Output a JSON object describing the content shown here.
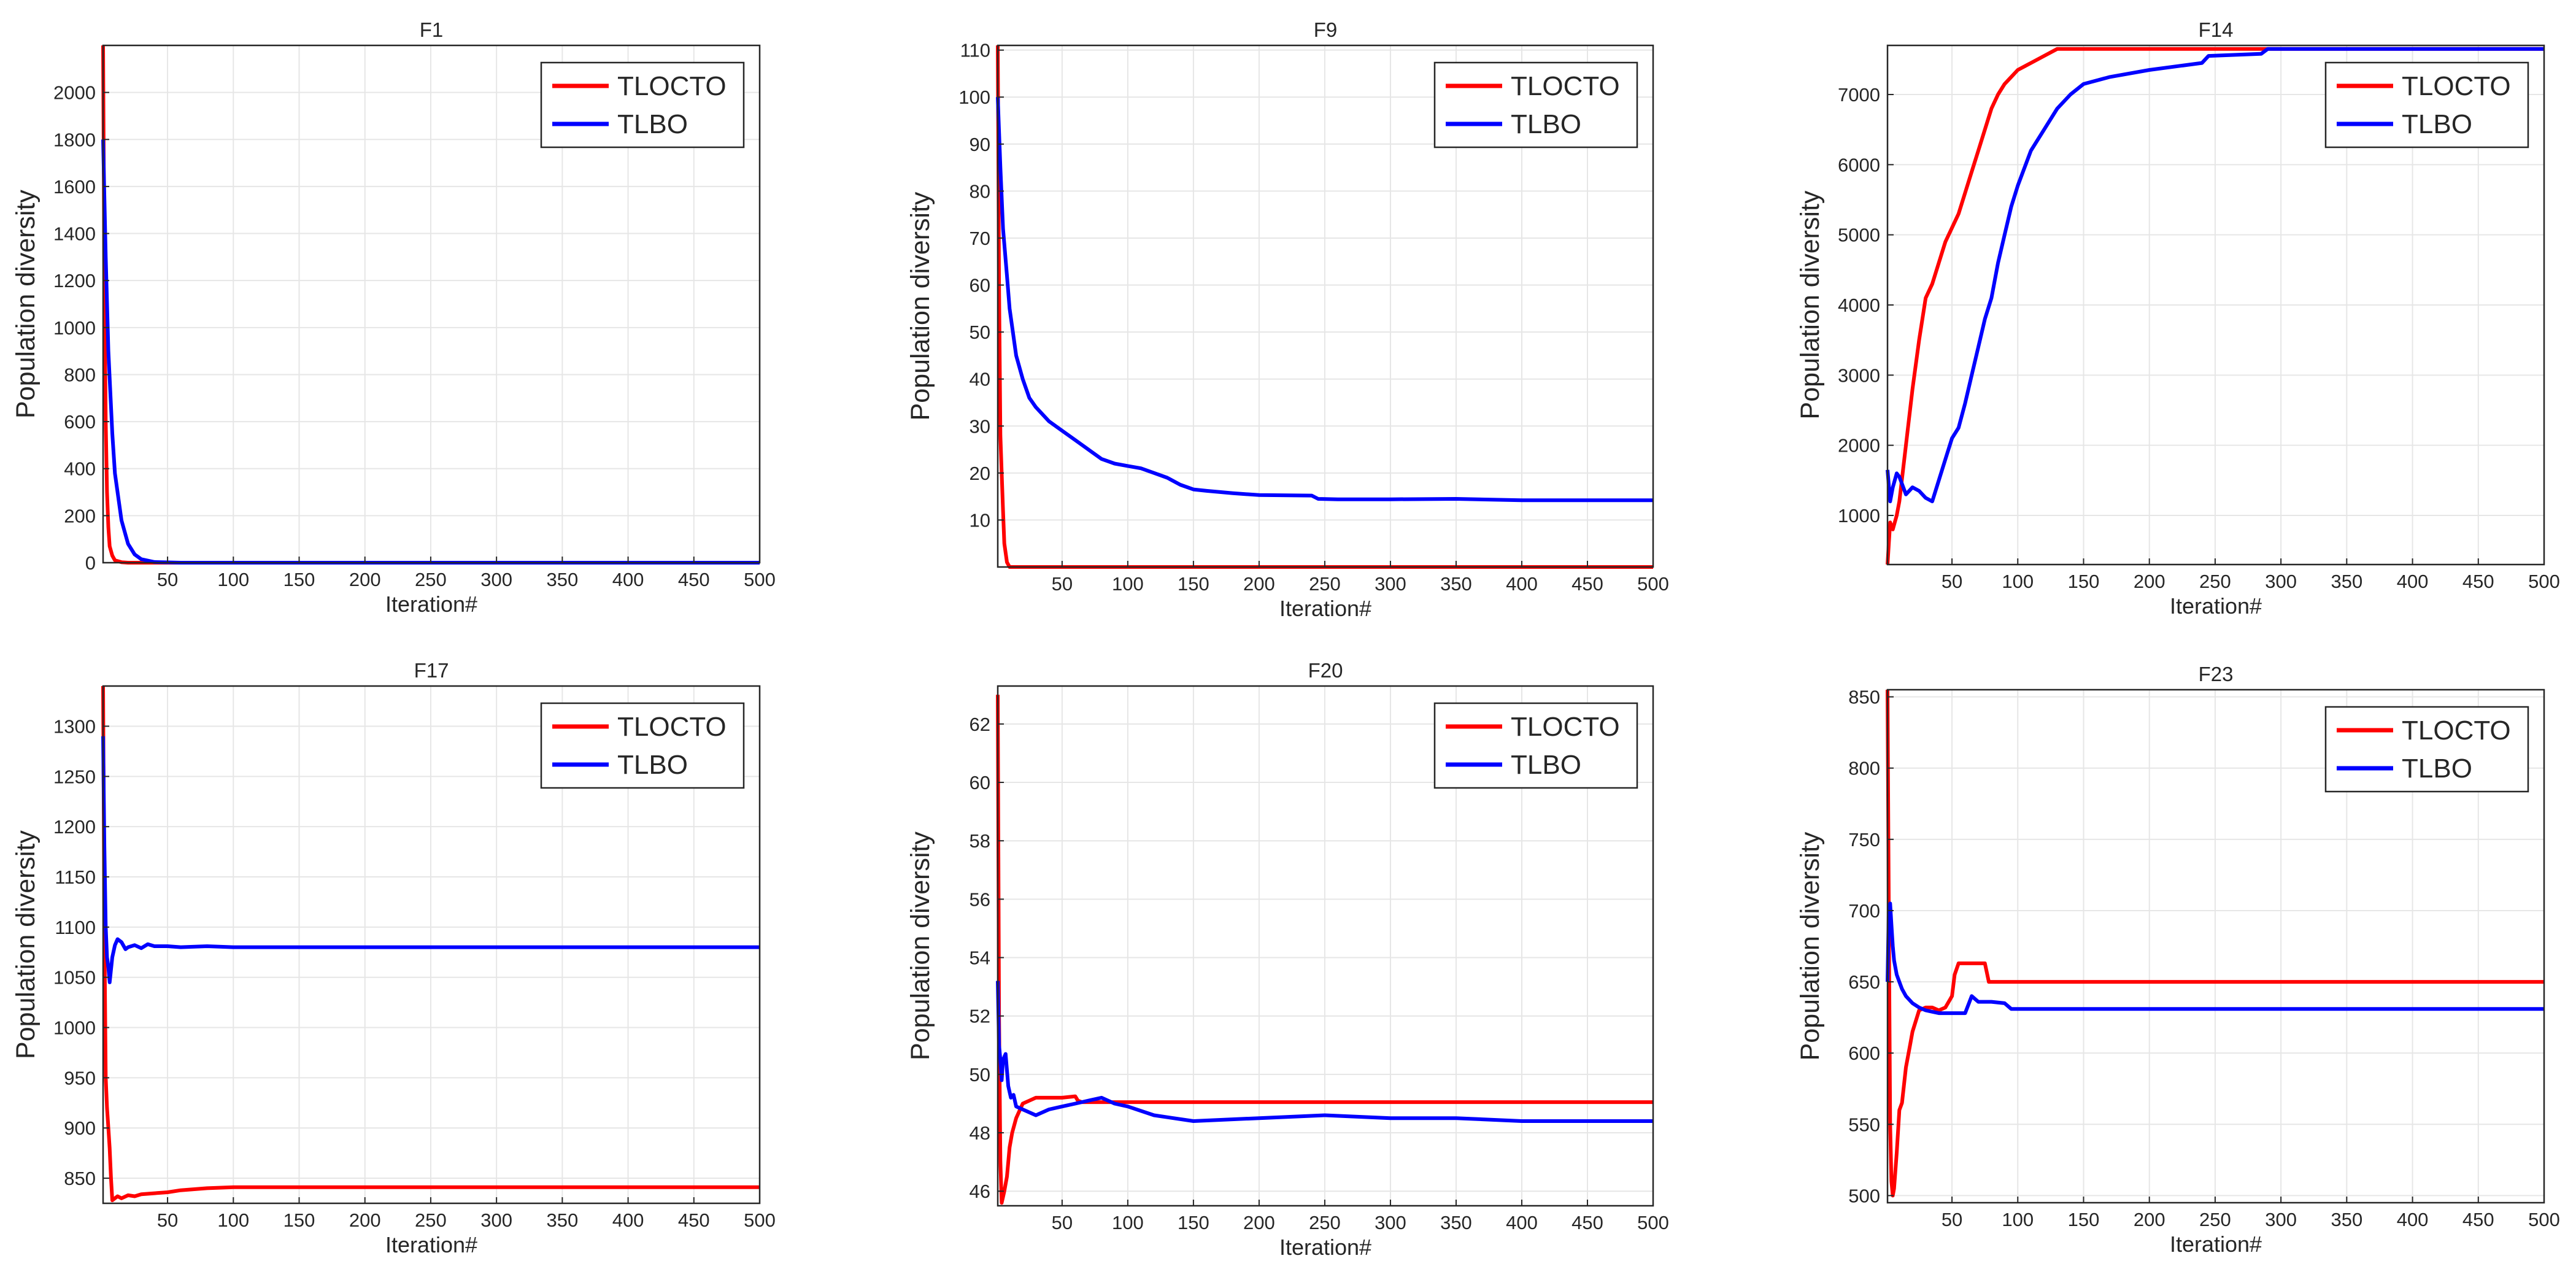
{
  "figure": {
    "series_names": [
      "TLOCTO",
      "TLBO"
    ]
  },
  "colors": {
    "TLOCTO": "#ff0000",
    "TLBO": "#0000ff",
    "grid": "#e6e6e6",
    "axis": "#262626"
  },
  "chart_data": [
    {
      "type": "line",
      "title": "F1",
      "xlabel": "Iteration#",
      "ylabel": "Population diversity",
      "xlim": [
        1,
        500
      ],
      "ylim": [
        0,
        2200
      ],
      "xticks": [
        50,
        100,
        150,
        200,
        250,
        300,
        350,
        400,
        450,
        500
      ],
      "yticks": [
        0,
        200,
        400,
        600,
        800,
        1000,
        1200,
        1400,
        1600,
        1800,
        2000
      ],
      "legend": "top-right",
      "grid": true,
      "series": [
        {
          "name": "TLOCTO",
          "x": [
            1,
            2,
            3,
            4,
            5,
            6,
            8,
            10,
            15,
            20,
            500
          ],
          "y": [
            2200,
            1200,
            600,
            300,
            150,
            70,
            30,
            10,
            2,
            0,
            0
          ]
        },
        {
          "name": "TLBO",
          "x": [
            1,
            3,
            5,
            8,
            10,
            15,
            20,
            25,
            30,
            40,
            60,
            500
          ],
          "y": [
            1800,
            1300,
            900,
            550,
            380,
            180,
            80,
            35,
            15,
            3,
            0,
            0
          ]
        }
      ]
    },
    {
      "type": "line",
      "title": "F9",
      "xlabel": "Iteration#",
      "ylabel": "Population diversity",
      "xlim": [
        1,
        500
      ],
      "ylim": [
        0,
        111
      ],
      "xticks": [
        50,
        100,
        150,
        200,
        250,
        300,
        350,
        400,
        450,
        500
      ],
      "yticks": [
        10,
        20,
        30,
        40,
        50,
        60,
        70,
        80,
        90,
        100,
        110
      ],
      "legend": "top-right",
      "grid": true,
      "series": [
        {
          "name": "TLOCTO",
          "x": [
            1,
            2,
            3,
            4,
            5,
            6,
            8,
            10,
            500
          ],
          "y": [
            111,
            60,
            28,
            20,
            12,
            5,
            1,
            0,
            0
          ]
        },
        {
          "name": "TLBO",
          "x": [
            1,
            3,
            5,
            8,
            10,
            15,
            20,
            25,
            30,
            40,
            50,
            60,
            70,
            80,
            90,
            100,
            110,
            120,
            130,
            140,
            150,
            160,
            180,
            200,
            240,
            245,
            260,
            300,
            350,
            400,
            450,
            500
          ],
          "y": [
            100,
            85,
            72,
            62,
            55,
            45,
            40,
            36,
            34,
            31,
            29,
            27,
            25,
            23,
            22,
            21.5,
            21,
            20,
            19,
            17.5,
            16.5,
            16.2,
            15.7,
            15.3,
            15.2,
            14.5,
            14.4,
            14.4,
            14.5,
            14.2,
            14.2,
            14.2
          ]
        }
      ]
    },
    {
      "type": "line",
      "title": "F14",
      "xlabel": "Iteration#",
      "ylabel": "Population diversity",
      "xlim": [
        1,
        500
      ],
      "ylim": [
        300,
        7700
      ],
      "xticks": [
        50,
        100,
        150,
        200,
        250,
        300,
        350,
        400,
        450,
        500
      ],
      "yticks": [
        1000,
        2000,
        3000,
        4000,
        5000,
        6000,
        7000
      ],
      "legend": "top-right",
      "grid": true,
      "series": [
        {
          "name": "TLOCTO",
          "x": [
            1,
            3,
            5,
            8,
            10,
            15,
            20,
            25,
            30,
            35,
            40,
            45,
            50,
            55,
            60,
            65,
            70,
            75,
            80,
            85,
            90,
            95,
            100,
            110,
            120,
            130,
            140,
            500
          ],
          "y": [
            300,
            900,
            800,
            1000,
            1200,
            2000,
            2800,
            3500,
            4100,
            4300,
            4600,
            4900,
            5100,
            5300,
            5600,
            5900,
            6200,
            6500,
            6800,
            7000,
            7150,
            7250,
            7350,
            7450,
            7550,
            7650,
            7650,
            7650
          ]
        },
        {
          "name": "TLBO",
          "x": [
            1,
            3,
            5,
            8,
            10,
            15,
            20,
            25,
            30,
            35,
            40,
            45,
            50,
            55,
            60,
            65,
            70,
            75,
            80,
            85,
            90,
            95,
            100,
            110,
            120,
            130,
            140,
            150,
            170,
            200,
            240,
            245,
            285,
            290,
            500
          ],
          "y": [
            1650,
            1200,
            1400,
            1600,
            1550,
            1300,
            1400,
            1350,
            1250,
            1200,
            1500,
            1800,
            2100,
            2250,
            2600,
            3000,
            3400,
            3800,
            4100,
            4600,
            5000,
            5400,
            5700,
            6200,
            6500,
            6800,
            7000,
            7150,
            7250,
            7350,
            7450,
            7550,
            7580,
            7650,
            7650
          ]
        }
      ]
    },
    {
      "type": "line",
      "title": "F17",
      "xlabel": "Iteration#",
      "ylabel": "Population diversity",
      "xlim": [
        1,
        500
      ],
      "ylim": [
        825,
        1340
      ],
      "xticks": [
        50,
        100,
        150,
        200,
        250,
        300,
        350,
        400,
        450,
        500
      ],
      "yticks": [
        850,
        900,
        950,
        1000,
        1050,
        1100,
        1150,
        1200,
        1250,
        1300
      ],
      "legend": "top-right",
      "grid": true,
      "series": [
        {
          "name": "TLOCTO",
          "x": [
            1,
            2,
            3,
            4,
            5,
            6,
            7,
            8,
            10,
            12,
            15,
            20,
            25,
            30,
            40,
            50,
            60,
            80,
            100,
            500
          ],
          "y": [
            1340,
            1100,
            950,
            920,
            900,
            880,
            850,
            828,
            830,
            832,
            830,
            833,
            832,
            834,
            835,
            836,
            838,
            840,
            841,
            841
          ]
        },
        {
          "name": "TLBO",
          "x": [
            1,
            2,
            3,
            4,
            5,
            6,
            8,
            10,
            12,
            15,
            18,
            20,
            25,
            30,
            35,
            40,
            50,
            60,
            80,
            100,
            500
          ],
          "y": [
            1290,
            1180,
            1100,
            1070,
            1060,
            1045,
            1070,
            1082,
            1088,
            1085,
            1078,
            1080,
            1082,
            1079,
            1083,
            1081,
            1081,
            1080,
            1081,
            1080,
            1080
          ]
        }
      ]
    },
    {
      "type": "line",
      "title": "F20",
      "xlabel": "Iteration#",
      "ylabel": "Population diversity",
      "xlim": [
        1,
        500
      ],
      "ylim": [
        45.5,
        63.3
      ],
      "xticks": [
        50,
        100,
        150,
        200,
        250,
        300,
        350,
        400,
        450,
        500
      ],
      "yticks": [
        46,
        48,
        50,
        52,
        54,
        56,
        58,
        60,
        62
      ],
      "legend": "top-right",
      "grid": true,
      "series": [
        {
          "name": "TLOCTO",
          "x": [
            1,
            2,
            3,
            4,
            5,
            6,
            8,
            10,
            12,
            15,
            20,
            25,
            30,
            40,
            50,
            60,
            62,
            65,
            500
          ],
          "y": [
            63,
            52,
            47,
            45.6,
            45.8,
            46,
            46.5,
            47.5,
            48,
            48.5,
            49,
            49.1,
            49.2,
            49.2,
            49.2,
            49.25,
            49.1,
            49.05,
            49.05
          ]
        },
        {
          "name": "TLBO",
          "x": [
            1,
            2,
            3,
            4,
            5,
            7,
            9,
            11,
            13,
            15,
            20,
            25,
            30,
            40,
            50,
            60,
            70,
            80,
            90,
            100,
            120,
            150,
            200,
            250,
            300,
            350,
            400,
            450,
            500
          ],
          "y": [
            53.2,
            51,
            50.5,
            49.8,
            50.5,
            50.7,
            49.6,
            49.2,
            49.3,
            48.9,
            48.8,
            48.7,
            48.6,
            48.8,
            48.9,
            49,
            49.1,
            49.2,
            49,
            48.9,
            48.6,
            48.4,
            48.5,
            48.6,
            48.5,
            48.5,
            48.4,
            48.4,
            48.4
          ]
        }
      ]
    },
    {
      "type": "line",
      "title": "F23",
      "xlabel": "Iteration#",
      "ylabel": "Population diversity",
      "xlim": [
        1,
        500
      ],
      "ylim": [
        495,
        855
      ],
      "xticks": [
        50,
        100,
        150,
        200,
        250,
        300,
        350,
        400,
        450,
        500
      ],
      "yticks": [
        500,
        550,
        600,
        650,
        700,
        750,
        800,
        850
      ],
      "legend": "top-right",
      "grid": true,
      "series": [
        {
          "name": "TLOCTO",
          "x": [
            1,
            2,
            3,
            4,
            5,
            6,
            8,
            10,
            12,
            15,
            18,
            20,
            25,
            30,
            35,
            40,
            45,
            50,
            52,
            55,
            60,
            70,
            75,
            78,
            80,
            500
          ],
          "y": [
            855,
            700,
            550,
            510,
            500,
            505,
            530,
            560,
            565,
            590,
            605,
            615,
            630,
            632,
            632,
            630,
            632,
            640,
            655,
            663,
            663,
            663,
            663,
            650,
            650,
            650
          ]
        },
        {
          "name": "TLBO",
          "x": [
            1,
            2,
            3,
            4,
            5,
            6,
            8,
            10,
            12,
            15,
            20,
            25,
            30,
            40,
            50,
            60,
            65,
            70,
            80,
            90,
            95,
            100,
            150,
            500
          ],
          "y": [
            650,
            700,
            705,
            690,
            675,
            665,
            655,
            650,
            645,
            640,
            635,
            632,
            630,
            628,
            628,
            628,
            640,
            636,
            636,
            635,
            631,
            631,
            631,
            631
          ]
        }
      ]
    }
  ]
}
